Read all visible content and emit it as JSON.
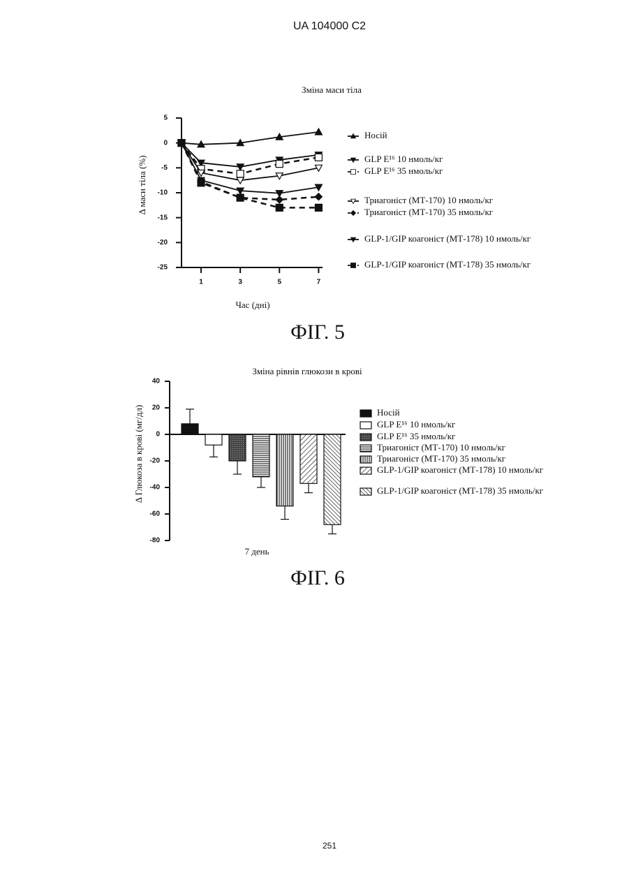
{
  "header": "UA 104000 C2",
  "page_number": "251",
  "chart_data": [
    {
      "type": "line",
      "title": "Зміна маси тіла",
      "y_label": "Δ маси тіла (%)",
      "x_label": "Час (дні)",
      "caption": "ФІГ. 5",
      "x": [
        0,
        1,
        3,
        5,
        7
      ],
      "xlim": [
        0,
        7.2
      ],
      "xticks": [
        1,
        3,
        5,
        7
      ],
      "ylim": [
        -25,
        5
      ],
      "yticks": [
        5,
        0,
        -5,
        -10,
        -15,
        -20,
        -25
      ],
      "series": [
        {
          "name": "Носій",
          "color": "#111",
          "marker": "triangle-up",
          "dashed": false,
          "values": [
            0,
            -0.3,
            0,
            1.2,
            2.2
          ]
        },
        {
          "name": "GLP E¹⁶ 10 нмоль/кг",
          "color": "#111",
          "marker": "triangle-down",
          "dashed": false,
          "values": [
            0,
            -4,
            -4.8,
            -3.4,
            -2.4
          ]
        },
        {
          "name": "GLP E¹⁶ 35 нмоль/кг",
          "color": "#111",
          "marker": "square-open",
          "dashed": true,
          "values": [
            0,
            -5.2,
            -6.2,
            -4.2,
            -2.9
          ]
        },
        {
          "name": "Триагоніст (МТ-170) 10 нмоль/кг",
          "color": "#111",
          "marker": "triangle-down-open",
          "dashed": false,
          "values": [
            0,
            -6,
            -7.5,
            -6.6,
            -5
          ]
        },
        {
          "name": "Триагоніст (МТ-170) 35 нмоль/кг",
          "color": "#111",
          "marker": "diamond",
          "dashed": true,
          "values": [
            0,
            -7.8,
            -11,
            -11.4,
            -10.8
          ]
        },
        {
          "name": "GLP-1/GIP коагоніст (МТ-178) 10 нмоль/кг",
          "color": "#111",
          "marker": "triangle-down",
          "dashed": false,
          "values": [
            0,
            -7.5,
            -9.6,
            -10.1,
            -8.9
          ]
        },
        {
          "name": "GLP-1/GIP коагоніст (МТ-178) 35 нмоль/кг",
          "color": "#111",
          "marker": "square",
          "dashed": true,
          "values": [
            0,
            -8,
            -11,
            -13,
            -13
          ]
        }
      ]
    },
    {
      "type": "bar",
      "title": "Зміна рівнів глюкози в крові",
      "y_label": "Δ Глюкоза в крові (мг/дл)",
      "caption": "ФІГ. 6",
      "categories": [
        "7 день"
      ],
      "ylim": [
        -80,
        40
      ],
      "yticks": [
        40,
        20,
        0,
        -20,
        -40,
        -60,
        -80
      ],
      "series": [
        {
          "name": "Носій",
          "pattern": "solid",
          "values": [
            8
          ],
          "errors": [
            11
          ]
        },
        {
          "name": "GLP E¹⁶ 10 нмоль/кг",
          "pattern": "open",
          "values": [
            -8
          ],
          "errors": [
            9
          ]
        },
        {
          "name": "GLP E¹⁶ 35 нмоль/кг",
          "pattern": "dark",
          "values": [
            -20
          ],
          "errors": [
            10
          ]
        },
        {
          "name": "Триагоніст (МТ-170) 10 нмоль/кг",
          "pattern": "hlines",
          "values": [
            -32
          ],
          "errors": [
            8
          ]
        },
        {
          "name": "Триагоніст (МТ-170) 35 нмоль/кг",
          "pattern": "vlines",
          "values": [
            -54
          ],
          "errors": [
            10
          ]
        },
        {
          "name": "GLP-1/GIP коагоніст (МТ-178) 10 нмоль/кг",
          "pattern": "diag",
          "values": [
            -37
          ],
          "errors": [
            7
          ]
        },
        {
          "name": "GLP-1/GIP коагоніст (МТ-178) 35 нмоль/кг",
          "pattern": "diag-back",
          "values": [
            -68
          ],
          "errors": [
            7
          ]
        }
      ]
    }
  ]
}
